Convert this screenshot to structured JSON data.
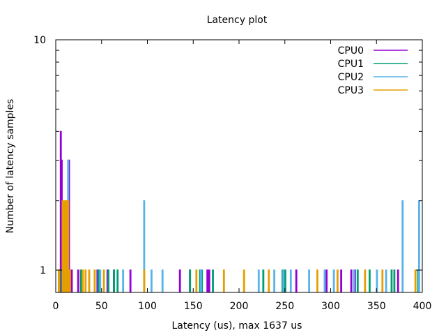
{
  "chart_data": {
    "type": "histogram",
    "title": "Latency plot",
    "xlabel": "Latency (us), max 1637 us",
    "ylabel": "Number of latency samples",
    "xlim": [
      0,
      400
    ],
    "ylim": [
      0.8,
      10
    ],
    "y_scale": "log",
    "x_ticks": [
      0,
      50,
      100,
      150,
      200,
      250,
      300,
      350,
      400
    ],
    "y_ticks": [
      1,
      10
    ],
    "grid": false,
    "legend_position": "top-right",
    "series": [
      {
        "name": "CPU0",
        "color": "#9400d3",
        "points": [
          [
            5,
            4
          ],
          [
            6,
            3
          ],
          [
            12,
            1
          ],
          [
            14,
            3
          ],
          [
            17,
            1
          ],
          [
            24,
            1
          ],
          [
            45,
            1
          ],
          [
            56,
            1
          ],
          [
            63,
            1
          ],
          [
            81,
            1
          ],
          [
            135,
            1
          ],
          [
            146,
            1
          ],
          [
            165,
            1
          ],
          [
            167,
            1
          ],
          [
            262,
            1
          ],
          [
            295,
            1
          ],
          [
            311,
            1
          ],
          [
            322,
            1
          ],
          [
            326,
            1
          ],
          [
            373,
            1
          ]
        ]
      },
      {
        "name": "CPU1",
        "color": "#009e73",
        "points": [
          [
            3,
            1
          ],
          [
            4,
            1
          ],
          [
            9,
            1
          ],
          [
            27,
            1
          ],
          [
            46,
            1
          ],
          [
            57,
            1
          ],
          [
            63,
            1
          ],
          [
            67,
            1
          ],
          [
            146,
            1
          ],
          [
            157,
            1
          ],
          [
            159,
            1
          ],
          [
            171,
            1
          ],
          [
            226,
            1
          ],
          [
            247,
            1
          ],
          [
            250,
            1
          ],
          [
            329,
            1
          ],
          [
            342,
            1
          ],
          [
            366,
            1
          ],
          [
            369,
            1
          ],
          [
            395,
            1
          ]
        ]
      },
      {
        "name": "CPU2",
        "color": "#56b4e9",
        "points": [
          [
            10,
            1
          ],
          [
            13,
            3
          ],
          [
            48,
            1
          ],
          [
            73,
            1
          ],
          [
            96,
            2
          ],
          [
            104,
            1
          ],
          [
            116,
            1
          ],
          [
            158,
            1
          ],
          [
            221,
            1
          ],
          [
            238,
            1
          ],
          [
            248,
            1
          ],
          [
            256,
            1
          ],
          [
            276,
            1
          ],
          [
            293,
            1
          ],
          [
            303,
            1
          ],
          [
            325,
            1
          ],
          [
            350,
            1
          ],
          [
            360,
            1
          ],
          [
            378,
            2
          ],
          [
            396,
            2
          ]
        ]
      },
      {
        "name": "CPU3",
        "color": "#e69f00",
        "points": [
          [
            3,
            1
          ],
          [
            7,
            2
          ],
          [
            9,
            2
          ],
          [
            11,
            2
          ],
          [
            13,
            2
          ],
          [
            15,
            1
          ],
          [
            29,
            1
          ],
          [
            32,
            1
          ],
          [
            36,
            1
          ],
          [
            42,
            1
          ],
          [
            52,
            1
          ],
          [
            96,
            1
          ],
          [
            153,
            1
          ],
          [
            183,
            1
          ],
          [
            205,
            1
          ],
          [
            232,
            1
          ],
          [
            285,
            1
          ],
          [
            307,
            1
          ],
          [
            337,
            1
          ],
          [
            356,
            1
          ],
          [
            392,
            1
          ]
        ]
      }
    ]
  }
}
